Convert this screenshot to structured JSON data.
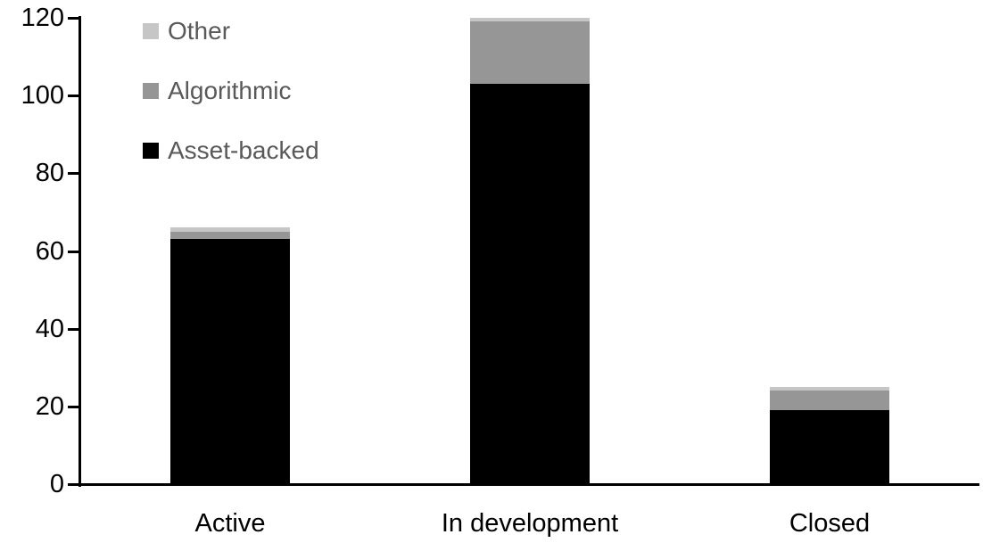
{
  "chart_data": {
    "type": "bar",
    "stacked": true,
    "title": "",
    "categories": [
      "Active",
      "In development",
      "Closed"
    ],
    "series": [
      {
        "name": "Asset-backed",
        "color": "#000000",
        "values": [
          63,
          103,
          19
        ]
      },
      {
        "name": "Algorithmic",
        "color": "#969696",
        "values": [
          2,
          16,
          5
        ]
      },
      {
        "name": "Other",
        "color": "#c6c6c6",
        "values": [
          1,
          1,
          1
        ]
      }
    ],
    "totals": [
      66,
      120,
      25
    ],
    "xlabel": "",
    "ylabel": "",
    "ylim": [
      0,
      120
    ],
    "yticks": [
      0,
      20,
      40,
      60,
      80,
      100,
      120
    ],
    "grid": false,
    "legend_position": "top-left",
    "legend_order_top_to_bottom": [
      "Other",
      "Algorithmic",
      "Asset-backed"
    ],
    "legend_text_color": "#595959",
    "axis_color": "#000000",
    "background_color": "#ffffff"
  }
}
